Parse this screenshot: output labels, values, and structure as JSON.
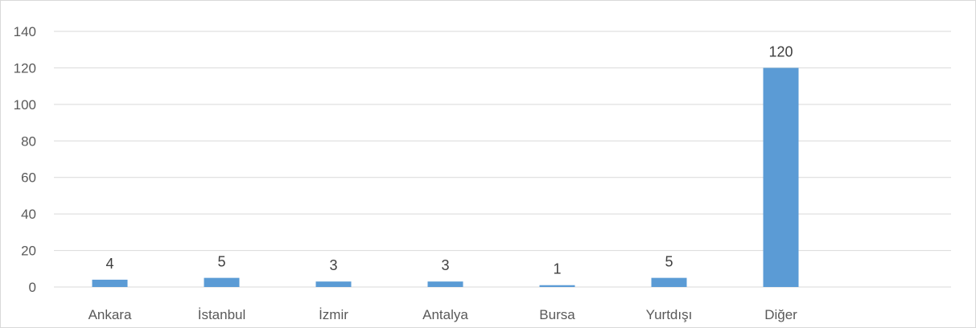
{
  "chart_data": {
    "type": "bar",
    "title": "",
    "xlabel": "",
    "ylabel": "",
    "categories": [
      "Ankara",
      "İstanbul",
      "İzmir",
      "Antalya",
      "Bursa",
      "Yurtdışı",
      "Diğer"
    ],
    "values": [
      4,
      5,
      3,
      3,
      1,
      5,
      120
    ],
    "data_labels": [
      "4",
      "5",
      "3",
      "3",
      "1",
      "5",
      "120"
    ],
    "ylim": [
      0,
      140
    ],
    "yticks": [
      0,
      20,
      40,
      60,
      80,
      100,
      120,
      140
    ],
    "grid": true,
    "legend": "none",
    "bar_color": "#5b9bd5",
    "grid_color": "#d9d9d9"
  }
}
